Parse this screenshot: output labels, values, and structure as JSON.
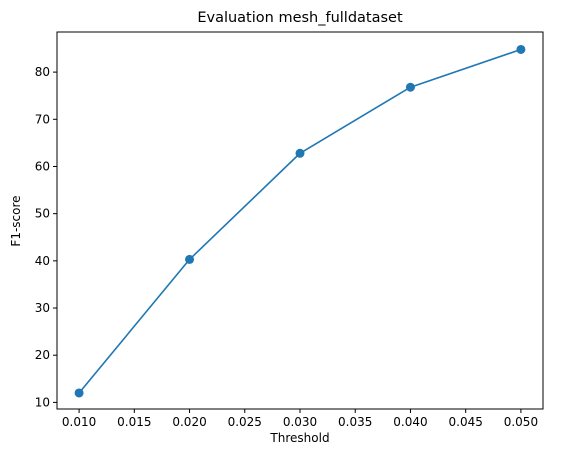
{
  "chart_data": {
    "type": "line",
    "title": "Evaluation mesh_fulldataset",
    "xlabel": "Threshold",
    "ylabel": "F1-score",
    "x": [
      0.01,
      0.02,
      0.03,
      0.04,
      0.05
    ],
    "series": [
      {
        "values": [
          12.0,
          40.3,
          62.8,
          76.8,
          84.8
        ],
        "color": "#1f77b4",
        "marker": "circle"
      }
    ],
    "xlim": [
      0.008,
      0.052
    ],
    "ylim": [
      8.6,
      88.5
    ],
    "xticks": [
      0.01,
      0.015,
      0.02,
      0.025,
      0.03,
      0.035,
      0.04,
      0.045,
      0.05
    ],
    "xtick_labels": [
      "0.010",
      "0.015",
      "0.020",
      "0.025",
      "0.030",
      "0.035",
      "0.040",
      "0.045",
      "0.050"
    ],
    "yticks": [
      10,
      20,
      30,
      40,
      50,
      60,
      70,
      80
    ],
    "ytick_labels": [
      "10",
      "20",
      "30",
      "40",
      "50",
      "60",
      "70",
      "80"
    ],
    "grid": false,
    "legend": "none"
  }
}
